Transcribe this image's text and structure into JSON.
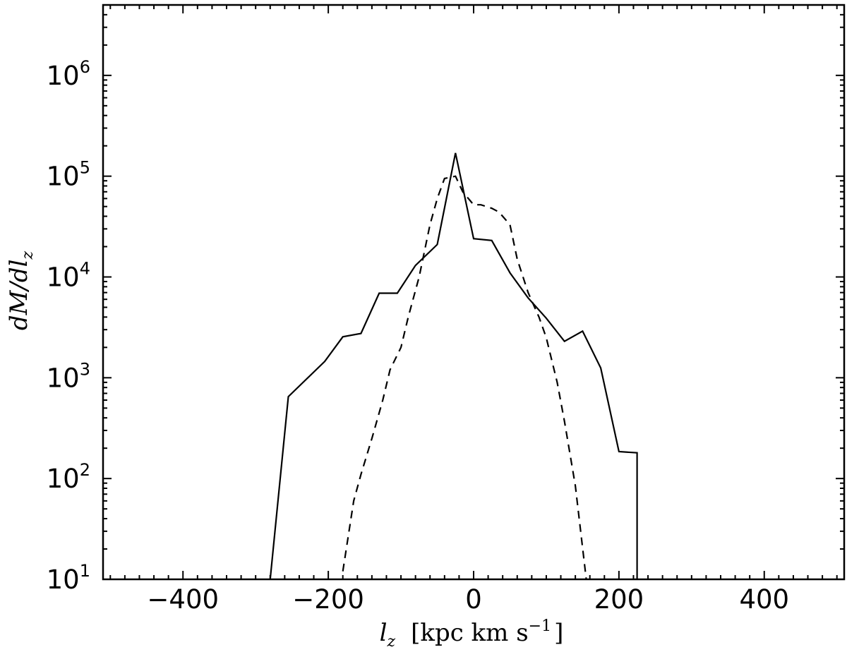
{
  "chart_data": {
    "type": "line",
    "xlabel": {
      "var": "l",
      "sub": "z",
      "unit": "kpc km s",
      "unit_exp": "−1"
    },
    "ylabel": "dM/dl",
    "ylabel_sub": "z",
    "xlim": [
      -510,
      510
    ],
    "ylim": [
      10,
      5000000
    ],
    "yscale": "log",
    "x_ticks": [
      {
        "value": -400,
        "label": "−400"
      },
      {
        "value": -200,
        "label": "−200"
      },
      {
        "value": 0,
        "label": "0"
      },
      {
        "value": 200,
        "label": "200"
      },
      {
        "value": 400,
        "label": "400"
      }
    ],
    "y_ticks": [
      {
        "value": 10,
        "base": "10",
        "exp": "1"
      },
      {
        "value": 100,
        "base": "10",
        "exp": "2"
      },
      {
        "value": 1000,
        "base": "10",
        "exp": "3"
      },
      {
        "value": 10000,
        "base": "10",
        "exp": "4"
      },
      {
        "value": 100000,
        "base": "10",
        "exp": "5"
      },
      {
        "value": 1000000,
        "base": "10",
        "exp": "6"
      }
    ],
    "grid": false,
    "series": [
      {
        "style": "solid",
        "color": "#000000",
        "x": [
          -280,
          -255,
          -205,
          -180,
          -155,
          -130,
          -105,
          -80,
          -50,
          -25,
          0,
          25,
          50,
          75,
          100,
          125,
          150,
          175,
          200,
          225,
          225
        ],
        "y": [
          10,
          650,
          1450,
          2550,
          2750,
          6900,
          6900,
          13000,
          21000,
          170000,
          24000,
          23000,
          11000,
          6200,
          3900,
          2300,
          2900,
          1250,
          185,
          180,
          10
        ]
      },
      {
        "style": "dashed",
        "color": "#000000",
        "x": [
          -180,
          -165,
          -155,
          -140,
          -125,
          -115,
          -100,
          -90,
          -75,
          -60,
          -50,
          -40,
          -25,
          -15,
          0,
          10,
          25,
          35,
          50,
          60,
          75,
          90,
          100,
          115,
          125,
          140,
          155
        ],
        "y": [
          12,
          60,
          110,
          250,
          600,
          1200,
          2000,
          4000,
          10000,
          33000,
          60000,
          95000,
          100000,
          70000,
          52000,
          52000,
          48000,
          44000,
          33000,
          15000,
          7000,
          4000,
          2500,
          900,
          370,
          85,
          10
        ]
      }
    ]
  }
}
